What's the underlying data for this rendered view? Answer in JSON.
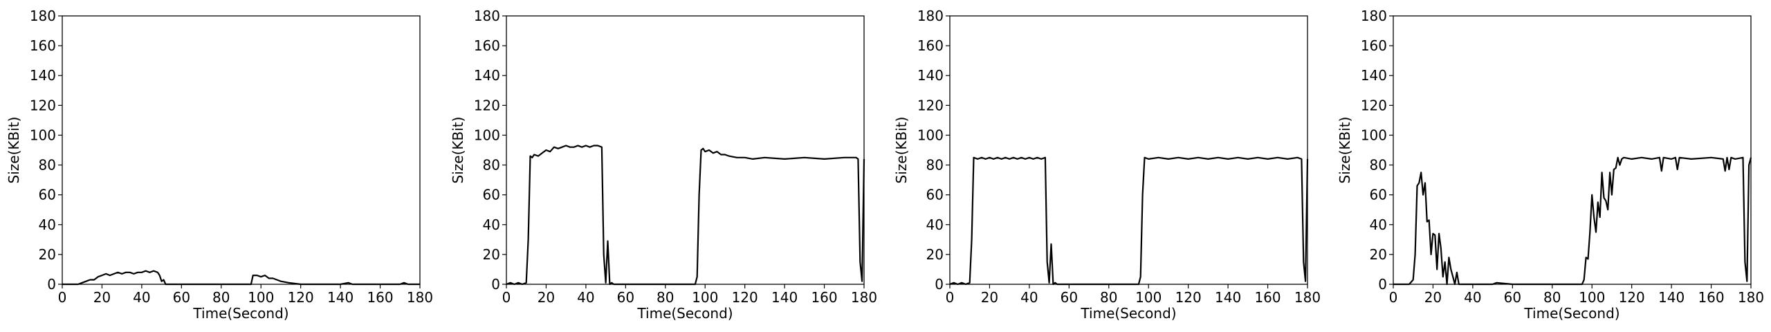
{
  "chart_data": [
    {
      "type": "line",
      "xlabel": "Time(Second)",
      "ylabel": "Size(KBit)",
      "xlim": [
        0,
        180
      ],
      "ylim": [
        0,
        180
      ],
      "xticks": [
        0,
        20,
        40,
        60,
        80,
        100,
        120,
        140,
        160,
        180
      ],
      "yticks": [
        0,
        20,
        40,
        60,
        80,
        100,
        120,
        140,
        160,
        180
      ],
      "grid": false,
      "series": [
        {
          "color": "#000000",
          "x": [
            0,
            8,
            10,
            12,
            14,
            16,
            18,
            20,
            22,
            24,
            26,
            28,
            30,
            32,
            34,
            36,
            38,
            40,
            42,
            44,
            46,
            48,
            49,
            50,
            51,
            52,
            54,
            60,
            70,
            80,
            90,
            95,
            96,
            98,
            100,
            102,
            104,
            106,
            108,
            110,
            114,
            120,
            130,
            140,
            144,
            146,
            150,
            160,
            170,
            172,
            174,
            178,
            180
          ],
          "y": [
            0,
            0,
            1,
            2,
            3,
            3,
            5,
            6,
            7,
            6,
            7,
            8,
            7,
            8,
            8,
            7,
            8,
            8,
            9,
            8,
            9,
            8,
            6,
            2,
            3,
            0,
            0,
            0,
            0,
            0,
            0,
            0,
            6,
            6,
            5,
            6,
            4,
            4,
            3,
            2,
            1,
            0,
            0,
            0,
            1,
            0,
            0,
            0,
            0,
            1,
            0,
            0,
            0
          ]
        }
      ]
    },
    {
      "type": "line",
      "xlabel": "Time(Second)",
      "ylabel": "Size(KBit)",
      "xlim": [
        0,
        180
      ],
      "ylim": [
        0,
        180
      ],
      "xticks": [
        0,
        20,
        40,
        60,
        80,
        100,
        120,
        140,
        160,
        180
      ],
      "yticks": [
        0,
        20,
        40,
        60,
        80,
        100,
        120,
        140,
        160,
        180
      ],
      "grid": false,
      "series": [
        {
          "color": "#000000",
          "x": [
            0,
            2,
            4,
            6,
            8,
            10,
            11,
            12,
            13,
            14,
            16,
            18,
            20,
            22,
            24,
            26,
            28,
            30,
            32,
            34,
            36,
            38,
            40,
            42,
            44,
            46,
            48,
            49,
            50,
            51,
            52,
            53,
            54,
            56,
            60,
            70,
            80,
            90,
            95,
            96,
            97,
            98,
            99,
            100,
            102,
            104,
            106,
            108,
            110,
            112,
            116,
            120,
            124,
            130,
            140,
            150,
            160,
            170,
            176,
            177,
            178,
            179,
            180
          ],
          "y": [
            0,
            1,
            0,
            1,
            0,
            1,
            30,
            86,
            85,
            87,
            86,
            88,
            90,
            89,
            92,
            91,
            92,
            93,
            92,
            92,
            93,
            92,
            93,
            92,
            93,
            93,
            92,
            20,
            1,
            29,
            0,
            1,
            0,
            0,
            0,
            0,
            0,
            0,
            0,
            5,
            60,
            90,
            91,
            89,
            90,
            88,
            89,
            87,
            87,
            86,
            85,
            85,
            84,
            85,
            84,
            85,
            84,
            85,
            85,
            84,
            15,
            2,
            84
          ]
        }
      ]
    },
    {
      "type": "line",
      "xlabel": "Time(Second)",
      "ylabel": "Size(KBit)",
      "xlim": [
        0,
        180
      ],
      "ylim": [
        0,
        180
      ],
      "xticks": [
        0,
        20,
        40,
        60,
        80,
        100,
        120,
        140,
        160,
        180
      ],
      "yticks": [
        0,
        20,
        40,
        60,
        80,
        100,
        120,
        140,
        160,
        180
      ],
      "grid": false,
      "series": [
        {
          "color": "#000000",
          "x": [
            0,
            2,
            4,
            6,
            8,
            10,
            11,
            12,
            14,
            16,
            18,
            20,
            22,
            24,
            26,
            28,
            30,
            32,
            34,
            36,
            38,
            40,
            42,
            44,
            46,
            48,
            49,
            50,
            51,
            52,
            53,
            54,
            60,
            70,
            80,
            90,
            95,
            96,
            97,
            98,
            100,
            105,
            110,
            115,
            120,
            125,
            130,
            135,
            140,
            145,
            150,
            155,
            160,
            165,
            170,
            175,
            177,
            178,
            179,
            180
          ],
          "y": [
            0,
            1,
            0,
            1,
            0,
            1,
            30,
            85,
            84,
            85,
            84,
            85,
            84,
            85,
            84,
            85,
            84,
            85,
            84,
            85,
            84,
            85,
            84,
            85,
            84,
            85,
            15,
            1,
            27,
            0,
            1,
            0,
            0,
            0,
            0,
            0,
            0,
            5,
            60,
            85,
            84,
            85,
            84,
            85,
            84,
            85,
            84,
            85,
            84,
            85,
            84,
            85,
            84,
            85,
            84,
            85,
            84,
            15,
            2,
            84
          ]
        }
      ]
    },
    {
      "type": "line",
      "xlabel": "Time(Second)",
      "ylabel": "Size(KBit)",
      "xlim": [
        0,
        180
      ],
      "ylim": [
        0,
        180
      ],
      "xticks": [
        0,
        20,
        40,
        60,
        80,
        100,
        120,
        140,
        160,
        180
      ],
      "yticks": [
        0,
        20,
        40,
        60,
        80,
        100,
        120,
        140,
        160,
        180
      ],
      "grid": false,
      "series": [
        {
          "color": "#000000",
          "x": [
            0,
            8,
            10,
            11,
            12,
            13,
            14,
            15,
            16,
            17,
            18,
            19,
            20,
            21,
            22,
            23,
            24,
            25,
            26,
            27,
            28,
            29,
            30,
            31,
            32,
            33,
            34,
            35,
            36,
            38,
            40,
            50,
            52,
            60,
            70,
            80,
            90,
            95,
            96,
            97,
            98,
            99,
            100,
            101,
            102,
            103,
            104,
            105,
            106,
            107,
            108,
            109,
            110,
            111,
            112,
            113,
            114,
            115,
            116,
            120,
            125,
            130,
            134,
            135,
            136,
            140,
            142,
            143,
            144,
            150,
            160,
            166,
            167,
            168,
            169,
            170,
            172,
            176,
            177,
            178,
            179,
            180
          ],
          "y": [
            0,
            0,
            3,
            20,
            66,
            68,
            75,
            60,
            68,
            42,
            43,
            20,
            34,
            33,
            10,
            34,
            24,
            5,
            15,
            0,
            18,
            10,
            5,
            0,
            8,
            0,
            0,
            0,
            0,
            0,
            0,
            0,
            1,
            0,
            0,
            0,
            0,
            0,
            3,
            18,
            17,
            35,
            60,
            45,
            35,
            55,
            45,
            75,
            58,
            56,
            50,
            75,
            60,
            77,
            78,
            85,
            80,
            84,
            85,
            84,
            85,
            84,
            85,
            76,
            85,
            84,
            85,
            77,
            85,
            84,
            85,
            84,
            76,
            85,
            77,
            85,
            84,
            85,
            15,
            2,
            80,
            85
          ]
        }
      ]
    }
  ]
}
